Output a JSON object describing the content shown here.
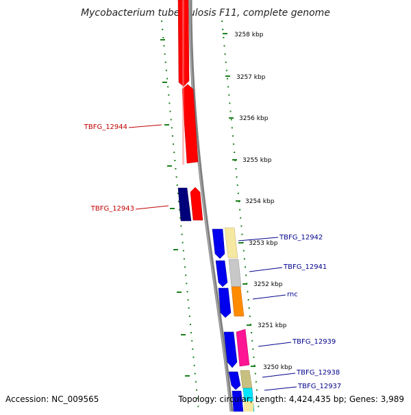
{
  "title": "Mycobacterium tuberculosis F11, complete genome",
  "footer": {
    "accession": "Accession: NC_009565",
    "topology": "Topology: circular; Length: 4,424,435 bp; Genes: 3,989"
  },
  "scale_labels": [
    "3258 kbp",
    "3257 kbp",
    "3256 kbp",
    "3255 kbp",
    "3254 kbp",
    "3253 kbp",
    "3252 kbp",
    "3251 kbp",
    "3250 kbp"
  ],
  "genes_left": [
    {
      "label": "TBFG_12944",
      "color": "#c00000"
    },
    {
      "label": "TBFG_12943",
      "color": "#c00000"
    }
  ],
  "genes_right": [
    {
      "label": "TBFG_12942",
      "color": "#00008b"
    },
    {
      "label": "TBFG_12941",
      "color": "#00008b"
    },
    {
      "label": "rnc",
      "color": "#00008b"
    },
    {
      "label": "TBFG_12939",
      "color": "#00008b"
    },
    {
      "label": "TBFG_12938",
      "color": "#00008b"
    },
    {
      "label": "TBFG_12937",
      "color": "#00008b"
    }
  ],
  "colors": {
    "backbone": "#808080",
    "tick": "#1a7f1a",
    "red_gene": "#ff0000",
    "blue_gene": "#0000ee",
    "navy_gene": "#00007a",
    "pale_yellow": "#f5e8a0",
    "light_gray": "#c8c8c8",
    "orange": "#ff8c00",
    "magenta": "#ff1493",
    "khaki": "#c8c080",
    "cyan": "#00e5ff"
  }
}
